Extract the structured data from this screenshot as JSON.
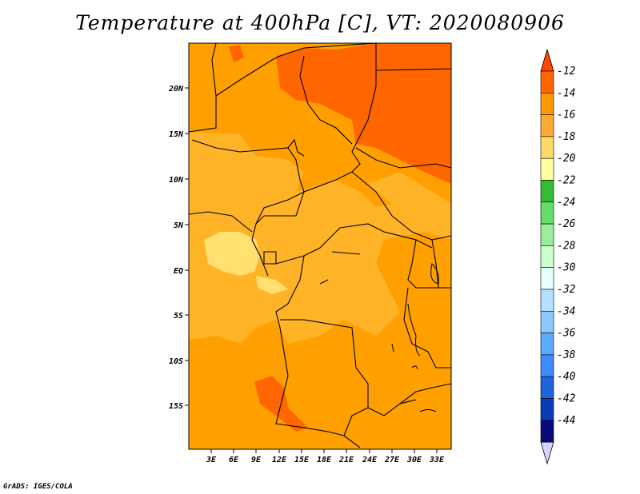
{
  "title": "Temperature at 400hPa [C], VT: 2020080906",
  "credit": "GrADS: IGES/COLA",
  "map": {
    "lat_labels": [
      "20N",
      "15N",
      "10N",
      "5N",
      "EQ",
      "5S",
      "10S",
      "15S"
    ],
    "lon_labels": [
      "3E",
      "6E",
      "9E",
      "12E",
      "15E",
      "18E",
      "21E",
      "24E",
      "27E",
      "30E",
      "33E"
    ],
    "colors": {
      "level_m14": "#ff6600",
      "level_m16": "#ffa000",
      "level_m18": "#ffb428",
      "level_m20": "#ffe070",
      "border": "#000000"
    }
  },
  "colorbar": {
    "labels": [
      "-12",
      "-14",
      "-16",
      "-18",
      "-20",
      "-22",
      "-24",
      "-26",
      "-28",
      "-30",
      "-32",
      "-34",
      "-36",
      "-38",
      "-40",
      "-42",
      "-44"
    ],
    "colors": [
      "#ff4500",
      "#ff6600",
      "#ff9900",
      "#ffaa33",
      "#ffd966",
      "#ffffa0",
      "#33bb33",
      "#66dd66",
      "#99ee99",
      "#ccffcc",
      "#e6ffff",
      "#b4e0ff",
      "#8cc8ff",
      "#5aaaff",
      "#3c8cff",
      "#1e64dc",
      "#0a3cb4",
      "#0a0a78",
      "#d4d4ff"
    ]
  }
}
